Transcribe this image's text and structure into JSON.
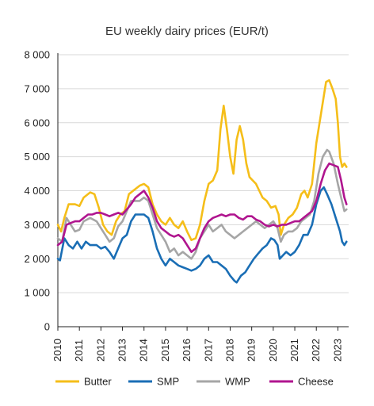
{
  "chart_data": {
    "type": "line",
    "title": "EU weekly dairy prices (EUR/t)",
    "xlabel": "",
    "ylabel": "",
    "xlim": [
      2010,
      2023.5
    ],
    "ylim": [
      0,
      8000
    ],
    "y_ticks": [
      0,
      1000,
      2000,
      3000,
      4000,
      5000,
      6000,
      7000,
      8000
    ],
    "y_tick_labels": [
      "0",
      "1 000",
      "2 000",
      "3 000",
      "4 000",
      "5 000",
      "6 000",
      "7 000",
      "8 000"
    ],
    "x_ticks": [
      2010,
      2011,
      2012,
      2013,
      2014,
      2015,
      2016,
      2017,
      2018,
      2019,
      2020,
      2021,
      2022,
      2023
    ],
    "x_tick_labels": [
      "2010",
      "2011",
      "2012",
      "2013",
      "2014",
      "2015",
      "2016",
      "2017",
      "2018",
      "2019",
      "2020",
      "2021",
      "2022",
      "2023"
    ],
    "grid": "horizontal",
    "legend_position": "bottom",
    "series": [
      {
        "name": "Butter",
        "color": "#f5be19",
        "points": [
          [
            2010.0,
            3000
          ],
          [
            2010.15,
            2800
          ],
          [
            2010.3,
            3200
          ],
          [
            2010.5,
            3600
          ],
          [
            2010.8,
            3600
          ],
          [
            2011.0,
            3550
          ],
          [
            2011.2,
            3800
          ],
          [
            2011.5,
            3950
          ],
          [
            2011.7,
            3900
          ],
          [
            2011.9,
            3500
          ],
          [
            2012.1,
            3000
          ],
          [
            2012.3,
            2800
          ],
          [
            2012.5,
            2700
          ],
          [
            2012.7,
            3100
          ],
          [
            2012.9,
            3300
          ],
          [
            2013.1,
            3400
          ],
          [
            2013.3,
            3900
          ],
          [
            2013.5,
            4000
          ],
          [
            2013.8,
            4150
          ],
          [
            2014.0,
            4200
          ],
          [
            2014.2,
            4100
          ],
          [
            2014.4,
            3600
          ],
          [
            2014.6,
            3300
          ],
          [
            2014.8,
            3100
          ],
          [
            2015.0,
            3000
          ],
          [
            2015.2,
            3200
          ],
          [
            2015.4,
            3000
          ],
          [
            2015.6,
            2900
          ],
          [
            2015.8,
            3100
          ],
          [
            2016.0,
            2800
          ],
          [
            2016.2,
            2550
          ],
          [
            2016.4,
            2600
          ],
          [
            2016.6,
            3000
          ],
          [
            2016.8,
            3700
          ],
          [
            2017.0,
            4200
          ],
          [
            2017.2,
            4300
          ],
          [
            2017.4,
            4600
          ],
          [
            2017.55,
            5800
          ],
          [
            2017.7,
            6500
          ],
          [
            2017.85,
            5800
          ],
          [
            2018.0,
            5000
          ],
          [
            2018.15,
            4500
          ],
          [
            2018.3,
            5500
          ],
          [
            2018.45,
            5900
          ],
          [
            2018.6,
            5500
          ],
          [
            2018.75,
            4800
          ],
          [
            2018.9,
            4400
          ],
          [
            2019.05,
            4300
          ],
          [
            2019.2,
            4200
          ],
          [
            2019.35,
            4000
          ],
          [
            2019.5,
            3800
          ],
          [
            2019.7,
            3700
          ],
          [
            2019.9,
            3500
          ],
          [
            2020.1,
            3550
          ],
          [
            2020.25,
            3300
          ],
          [
            2020.35,
            2700
          ],
          [
            2020.5,
            3000
          ],
          [
            2020.7,
            3200
          ],
          [
            2020.9,
            3300
          ],
          [
            2021.1,
            3500
          ],
          [
            2021.3,
            3900
          ],
          [
            2021.45,
            4000
          ],
          [
            2021.6,
            3800
          ],
          [
            2021.8,
            4200
          ],
          [
            2022.0,
            5400
          ],
          [
            2022.15,
            6000
          ],
          [
            2022.3,
            6600
          ],
          [
            2022.45,
            7200
          ],
          [
            2022.6,
            7250
          ],
          [
            2022.75,
            7000
          ],
          [
            2022.9,
            6700
          ],
          [
            2023.0,
            6000
          ],
          [
            2023.1,
            5000
          ],
          [
            2023.2,
            4700
          ],
          [
            2023.3,
            4800
          ],
          [
            2023.4,
            4700
          ]
        ]
      },
      {
        "name": "SMP",
        "color": "#1a6eb5",
        "points": [
          [
            2010.0,
            2000
          ],
          [
            2010.1,
            1950
          ],
          [
            2010.3,
            2600
          ],
          [
            2010.5,
            2400
          ],
          [
            2010.7,
            2300
          ],
          [
            2010.9,
            2500
          ],
          [
            2011.1,
            2300
          ],
          [
            2011.3,
            2500
          ],
          [
            2011.5,
            2400
          ],
          [
            2011.8,
            2400
          ],
          [
            2012.0,
            2300
          ],
          [
            2012.2,
            2350
          ],
          [
            2012.4,
            2200
          ],
          [
            2012.6,
            2000
          ],
          [
            2012.8,
            2300
          ],
          [
            2013.0,
            2600
          ],
          [
            2013.2,
            2700
          ],
          [
            2013.4,
            3100
          ],
          [
            2013.6,
            3300
          ],
          [
            2013.8,
            3300
          ],
          [
            2014.0,
            3300
          ],
          [
            2014.2,
            3200
          ],
          [
            2014.4,
            2800
          ],
          [
            2014.6,
            2300
          ],
          [
            2014.8,
            2000
          ],
          [
            2015.0,
            1800
          ],
          [
            2015.2,
            2000
          ],
          [
            2015.4,
            1900
          ],
          [
            2015.6,
            1800
          ],
          [
            2015.8,
            1750
          ],
          [
            2016.0,
            1700
          ],
          [
            2016.2,
            1650
          ],
          [
            2016.4,
            1700
          ],
          [
            2016.6,
            1800
          ],
          [
            2016.8,
            2000
          ],
          [
            2017.0,
            2100
          ],
          [
            2017.2,
            1900
          ],
          [
            2017.4,
            1900
          ],
          [
            2017.6,
            1800
          ],
          [
            2017.8,
            1700
          ],
          [
            2018.0,
            1500
          ],
          [
            2018.2,
            1350
          ],
          [
            2018.3,
            1300
          ],
          [
            2018.5,
            1500
          ],
          [
            2018.7,
            1600
          ],
          [
            2018.9,
            1800
          ],
          [
            2019.1,
            2000
          ],
          [
            2019.3,
            2150
          ],
          [
            2019.5,
            2300
          ],
          [
            2019.7,
            2400
          ],
          [
            2019.9,
            2600
          ],
          [
            2020.05,
            2550
          ],
          [
            2020.2,
            2400
          ],
          [
            2020.3,
            2000
          ],
          [
            2020.45,
            2100
          ],
          [
            2020.6,
            2200
          ],
          [
            2020.8,
            2100
          ],
          [
            2021.0,
            2200
          ],
          [
            2021.2,
            2400
          ],
          [
            2021.4,
            2700
          ],
          [
            2021.6,
            2700
          ],
          [
            2021.8,
            3000
          ],
          [
            2022.0,
            3600
          ],
          [
            2022.2,
            4000
          ],
          [
            2022.35,
            4100
          ],
          [
            2022.5,
            3900
          ],
          [
            2022.7,
            3600
          ],
          [
            2022.9,
            3200
          ],
          [
            2023.1,
            2800
          ],
          [
            2023.2,
            2500
          ],
          [
            2023.3,
            2400
          ],
          [
            2023.4,
            2500
          ]
        ]
      },
      {
        "name": "WMP",
        "color": "#a6a6a6",
        "points": [
          [
            2010.0,
            2600
          ],
          [
            2010.2,
            2500
          ],
          [
            2010.4,
            3200
          ],
          [
            2010.6,
            3000
          ],
          [
            2010.8,
            2800
          ],
          [
            2011.0,
            2850
          ],
          [
            2011.2,
            3100
          ],
          [
            2011.5,
            3200
          ],
          [
            2011.8,
            3100
          ],
          [
            2012.0,
            2900
          ],
          [
            2012.2,
            2700
          ],
          [
            2012.4,
            2500
          ],
          [
            2012.6,
            2600
          ],
          [
            2012.8,
            2950
          ],
          [
            2013.0,
            3100
          ],
          [
            2013.2,
            3400
          ],
          [
            2013.4,
            3700
          ],
          [
            2013.6,
            3700
          ],
          [
            2013.8,
            3700
          ],
          [
            2014.0,
            3800
          ],
          [
            2014.2,
            3700
          ],
          [
            2014.4,
            3300
          ],
          [
            2014.6,
            2900
          ],
          [
            2014.8,
            2700
          ],
          [
            2015.0,
            2500
          ],
          [
            2015.2,
            2200
          ],
          [
            2015.4,
            2300
          ],
          [
            2015.6,
            2100
          ],
          [
            2015.8,
            2200
          ],
          [
            2016.0,
            2100
          ],
          [
            2016.2,
            2000
          ],
          [
            2016.4,
            2200
          ],
          [
            2016.6,
            2600
          ],
          [
            2016.8,
            2800
          ],
          [
            2017.0,
            3000
          ],
          [
            2017.2,
            2800
          ],
          [
            2017.4,
            2900
          ],
          [
            2017.6,
            3000
          ],
          [
            2017.8,
            2800
          ],
          [
            2018.0,
            2700
          ],
          [
            2018.2,
            2600
          ],
          [
            2018.4,
            2700
          ],
          [
            2018.6,
            2800
          ],
          [
            2018.8,
            2900
          ],
          [
            2019.0,
            3000
          ],
          [
            2019.2,
            3100
          ],
          [
            2019.4,
            3000
          ],
          [
            2019.6,
            2900
          ],
          [
            2019.8,
            3000
          ],
          [
            2020.0,
            3100
          ],
          [
            2020.2,
            2900
          ],
          [
            2020.35,
            2500
          ],
          [
            2020.5,
            2700
          ],
          [
            2020.7,
            2800
          ],
          [
            2020.9,
            2800
          ],
          [
            2021.1,
            2900
          ],
          [
            2021.3,
            3100
          ],
          [
            2021.5,
            3200
          ],
          [
            2021.7,
            3300
          ],
          [
            2021.9,
            3700
          ],
          [
            2022.1,
            4500
          ],
          [
            2022.3,
            5000
          ],
          [
            2022.5,
            5200
          ],
          [
            2022.6,
            5150
          ],
          [
            2022.8,
            4800
          ],
          [
            2023.0,
            4200
          ],
          [
            2023.15,
            3800
          ],
          [
            2023.3,
            3400
          ],
          [
            2023.4,
            3450
          ]
        ]
      },
      {
        "name": "Cheese",
        "color": "#b0158f",
        "points": [
          [
            2010.0,
            2400
          ],
          [
            2010.2,
            2500
          ],
          [
            2010.4,
            3000
          ],
          [
            2010.6,
            3050
          ],
          [
            2010.8,
            3100
          ],
          [
            2011.0,
            3100
          ],
          [
            2011.2,
            3200
          ],
          [
            2011.4,
            3300
          ],
          [
            2011.6,
            3300
          ],
          [
            2011.8,
            3350
          ],
          [
            2012.0,
            3350
          ],
          [
            2012.2,
            3300
          ],
          [
            2012.4,
            3250
          ],
          [
            2012.6,
            3300
          ],
          [
            2012.8,
            3350
          ],
          [
            2013.0,
            3300
          ],
          [
            2013.2,
            3450
          ],
          [
            2013.4,
            3600
          ],
          [
            2013.6,
            3800
          ],
          [
            2013.8,
            3900
          ],
          [
            2014.0,
            4000
          ],
          [
            2014.2,
            3800
          ],
          [
            2014.4,
            3500
          ],
          [
            2014.6,
            3100
          ],
          [
            2014.8,
            2900
          ],
          [
            2015.0,
            2800
          ],
          [
            2015.2,
            2700
          ],
          [
            2015.4,
            2650
          ],
          [
            2015.6,
            2700
          ],
          [
            2015.8,
            2600
          ],
          [
            2016.0,
            2400
          ],
          [
            2016.2,
            2200
          ],
          [
            2016.4,
            2300
          ],
          [
            2016.6,
            2600
          ],
          [
            2016.8,
            2900
          ],
          [
            2017.0,
            3100
          ],
          [
            2017.2,
            3200
          ],
          [
            2017.4,
            3250
          ],
          [
            2017.6,
            3300
          ],
          [
            2017.8,
            3250
          ],
          [
            2018.0,
            3300
          ],
          [
            2018.2,
            3300
          ],
          [
            2018.4,
            3200
          ],
          [
            2018.6,
            3150
          ],
          [
            2018.8,
            3250
          ],
          [
            2019.0,
            3250
          ],
          [
            2019.2,
            3150
          ],
          [
            2019.4,
            3100
          ],
          [
            2019.6,
            3000
          ],
          [
            2019.8,
            2950
          ],
          [
            2020.0,
            3000
          ],
          [
            2020.2,
            2950
          ],
          [
            2020.4,
            3000
          ],
          [
            2020.6,
            3000
          ],
          [
            2020.8,
            3050
          ],
          [
            2021.0,
            3100
          ],
          [
            2021.2,
            3100
          ],
          [
            2021.4,
            3200
          ],
          [
            2021.6,
            3300
          ],
          [
            2021.8,
            3400
          ],
          [
            2022.0,
            3700
          ],
          [
            2022.2,
            4200
          ],
          [
            2022.4,
            4600
          ],
          [
            2022.6,
            4800
          ],
          [
            2022.8,
            4750
          ],
          [
            2023.0,
            4700
          ],
          [
            2023.15,
            4300
          ],
          [
            2023.3,
            3800
          ],
          [
            2023.4,
            3600
          ]
        ]
      }
    ]
  }
}
